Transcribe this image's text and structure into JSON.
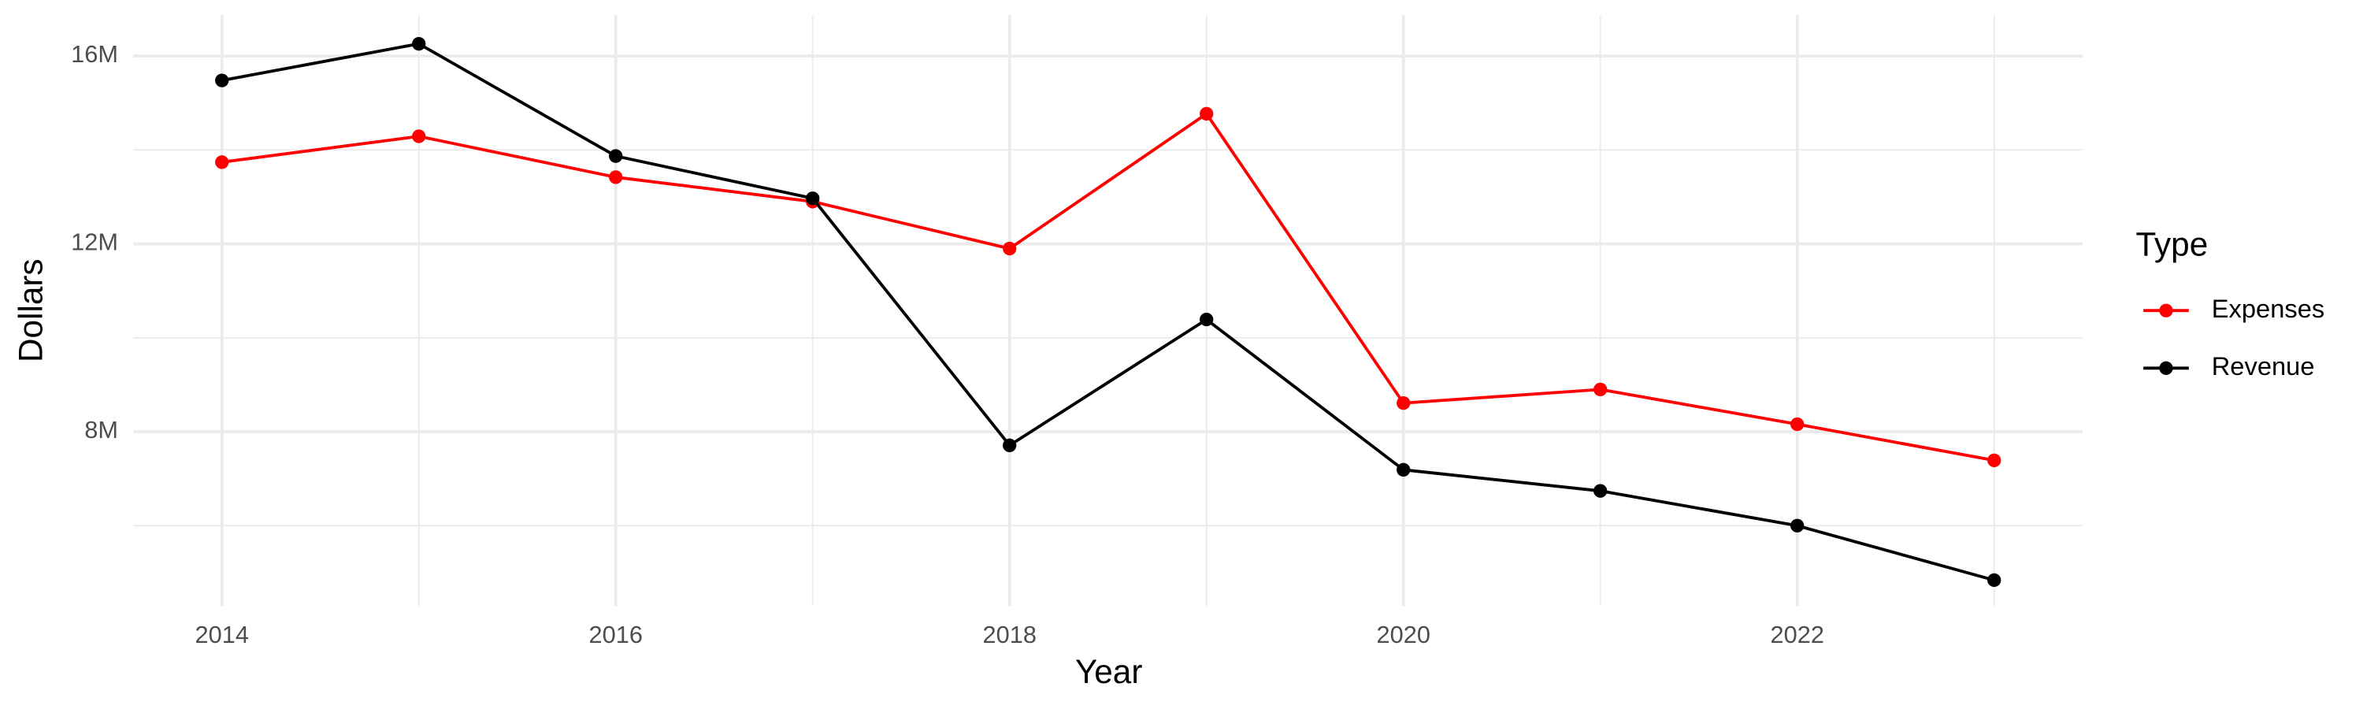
{
  "chart_data": {
    "type": "line",
    "x_label": "Year",
    "y_label": "Dollars",
    "x": [
      2014,
      2015,
      2016,
      2017,
      2018,
      2019,
      2020,
      2021,
      2022,
      2023
    ],
    "series": [
      {
        "name": "Expenses",
        "color": "#ff0000",
        "values": [
          13740000,
          14290000,
          13420000,
          12900000,
          11900000,
          14770000,
          8610000,
          8900000,
          8160000,
          7390000
        ]
      },
      {
        "name": "Revenue",
        "color": "#000000",
        "values": [
          15480000,
          16260000,
          13870000,
          12970000,
          7710000,
          10390000,
          7190000,
          6740000,
          6000000,
          4840000
        ]
      }
    ],
    "xlim": [
      2013.55,
      2023.45
    ],
    "ylim": [
      4290000,
      16870000
    ],
    "xticks": [
      2014,
      2016,
      2018,
      2020,
      2022
    ],
    "xminorticks": [
      2015,
      2017,
      2019,
      2021,
      2023
    ],
    "yticks": [
      {
        "value": 8000000,
        "label": "8M"
      },
      {
        "value": 12000000,
        "label": "12M"
      },
      {
        "value": 16000000,
        "label": "16M"
      }
    ],
    "yminorticks": [
      6000000,
      10000000,
      14000000
    ],
    "grid": true,
    "legend_title": "Type",
    "legend_position": "right"
  }
}
